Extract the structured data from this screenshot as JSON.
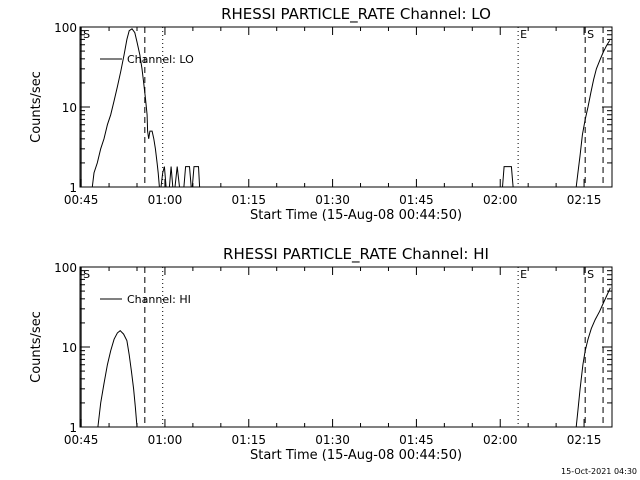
{
  "timestamp": "15-Oct-2021 04:30",
  "chart_data": [
    {
      "type": "line",
      "title": "RHESSI PARTICLE_RATE Channel: LO",
      "xlabel": "Start Time (15-Aug-08 00:44:50)",
      "ylabel": "Counts/sec",
      "y_scale": "log",
      "xlim": [
        -0.2,
        95
      ],
      "ylim": [
        1,
        100
      ],
      "x_tick_values": [
        0,
        15,
        30,
        45,
        60,
        75,
        90
      ],
      "x_tick_labels": [
        "00:45",
        "01:00",
        "01:15",
        "01:30",
        "01:45",
        "02:00",
        "02:15"
      ],
      "y_tick_values": [
        1,
        10,
        100
      ],
      "y_tick_labels": [
        "1",
        "10",
        "100"
      ],
      "legend": {
        "label": "Channel: LO",
        "position": "top-left"
      },
      "markers": [
        {
          "x": 0.0,
          "style": "solid",
          "label": "S"
        },
        {
          "x": 11.4,
          "style": "dashed",
          "label": ""
        },
        {
          "x": 14.6,
          "style": "dotted",
          "label": ""
        },
        {
          "x": 78.2,
          "style": "dotted",
          "label": "E"
        },
        {
          "x": 90.2,
          "style": "dashed",
          "label": "S"
        },
        {
          "x": 93.4,
          "style": "dashed",
          "label": ""
        }
      ],
      "series": [
        {
          "segments": [
            [
              [
                2.0,
                1
              ],
              [
                2.3,
                1.5
              ],
              [
                2.9,
                2
              ],
              [
                3.5,
                3
              ],
              [
                4.1,
                4
              ],
              [
                4.7,
                6
              ],
              [
                5.3,
                8
              ],
              [
                5.9,
                12
              ],
              [
                6.5,
                18
              ],
              [
                7.1,
                28
              ],
              [
                7.7,
                45
              ],
              [
                8.2,
                70
              ],
              [
                8.6,
                90
              ],
              [
                9.1,
                95
              ],
              [
                9.6,
                85
              ],
              [
                10.0,
                65
              ],
              [
                10.5,
                45
              ],
              [
                10.9,
                30
              ],
              [
                11.2,
                20
              ],
              [
                11.5,
                13
              ],
              [
                11.8,
                8
              ],
              [
                11.9,
                5
              ],
              [
                12.1,
                4
              ],
              [
                12.3,
                5
              ],
              [
                12.7,
                5
              ],
              [
                13.0,
                4
              ],
              [
                13.3,
                3
              ],
              [
                13.6,
                2
              ],
              [
                13.8,
                1.5
              ],
              [
                14.0,
                1
              ]
            ],
            [
              [
                14.3,
                1
              ],
              [
                14.6,
                1.5
              ],
              [
                14.9,
                1.8
              ],
              [
                15.2,
                1
              ]
            ],
            [
              [
                15.8,
                1
              ],
              [
                16.1,
                1.8
              ],
              [
                16.4,
                1
              ]
            ],
            [
              [
                16.8,
                1
              ],
              [
                17.2,
                1.8
              ],
              [
                17.6,
                1
              ]
            ],
            [
              [
                18.4,
                1
              ],
              [
                18.7,
                1.8
              ],
              [
                19.4,
                1.8
              ],
              [
                19.7,
                1
              ]
            ],
            [
              [
                19.9,
                1
              ],
              [
                20.2,
                1.8
              ],
              [
                21.0,
                1.8
              ],
              [
                21.2,
                1
              ]
            ],
            [
              [
                75.4,
                1
              ],
              [
                75.7,
                1.8
              ],
              [
                77.0,
                1.8
              ],
              [
                77.3,
                1
              ]
            ],
            [
              [
                88.6,
                1
              ],
              [
                88.9,
                1.5
              ],
              [
                89.3,
                2.5
              ],
              [
                89.7,
                4.5
              ],
              [
                90.2,
                7
              ],
              [
                90.7,
                10
              ],
              [
                91.2,
                15
              ],
              [
                91.7,
                22
              ],
              [
                92.2,
                30
              ],
              [
                92.8,
                38
              ],
              [
                93.4,
                48
              ],
              [
                94.0,
                58
              ],
              [
                94.6,
                68
              ]
            ]
          ]
        }
      ]
    },
    {
      "type": "line",
      "title": "RHESSI PARTICLE_RATE Channel: HI",
      "xlabel": "Start Time (15-Aug-08 00:44:50)",
      "ylabel": "Counts/sec",
      "y_scale": "log",
      "xlim": [
        -0.2,
        95
      ],
      "ylim": [
        1,
        100
      ],
      "x_tick_values": [
        0,
        15,
        30,
        45,
        60,
        75,
        90
      ],
      "x_tick_labels": [
        "00:45",
        "01:00",
        "01:15",
        "01:30",
        "01:45",
        "02:00",
        "02:15"
      ],
      "y_tick_values": [
        1,
        10,
        100
      ],
      "y_tick_labels": [
        "1",
        "10",
        "100"
      ],
      "legend": {
        "label": "Channel: HI",
        "position": "top-left"
      },
      "markers": [
        {
          "x": 0.0,
          "style": "solid",
          "label": "S"
        },
        {
          "x": 11.4,
          "style": "dashed",
          "label": ""
        },
        {
          "x": 14.6,
          "style": "dotted",
          "label": ""
        },
        {
          "x": 78.2,
          "style": "dotted",
          "label": "E"
        },
        {
          "x": 90.2,
          "style": "dashed",
          "label": "S"
        },
        {
          "x": 93.4,
          "style": "dashed",
          "label": ""
        }
      ],
      "series": [
        {
          "segments": [
            [
              [
                3.0,
                1
              ],
              [
                3.5,
                2
              ],
              [
                4.1,
                3.5
              ],
              [
                4.7,
                6
              ],
              [
                5.3,
                9
              ],
              [
                5.9,
                12.5
              ],
              [
                6.5,
                15
              ],
              [
                7.0,
                16
              ],
              [
                7.6,
                14.5
              ],
              [
                8.2,
                12
              ],
              [
                8.6,
                8
              ],
              [
                9.0,
                5
              ],
              [
                9.4,
                3
              ],
              [
                9.7,
                1.8
              ],
              [
                10.0,
                1
              ]
            ],
            [
              [
                88.6,
                1
              ],
              [
                88.9,
                1.6
              ],
              [
                89.3,
                3
              ],
              [
                89.8,
                6
              ],
              [
                90.2,
                9
              ],
              [
                90.7,
                12.5
              ],
              [
                91.3,
                17
              ],
              [
                92.0,
                22
              ],
              [
                92.8,
                28
              ],
              [
                93.5,
                36
              ],
              [
                94.2,
                46
              ],
              [
                94.7,
                55
              ]
            ]
          ]
        }
      ]
    }
  ]
}
